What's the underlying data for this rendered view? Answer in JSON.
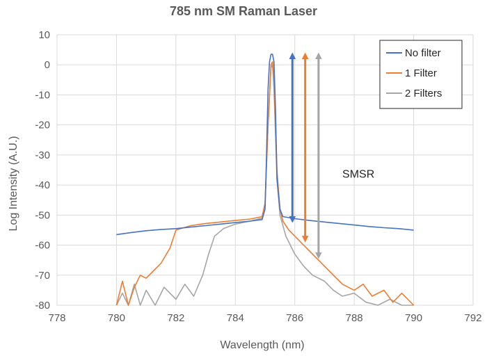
{
  "chart_data": {
    "type": "line",
    "title": "785 nm SM Raman Laser",
    "xlabel": "Wavelength (nm)",
    "ylabel": "Log Intensity (A.U.)",
    "xlim": [
      778,
      792
    ],
    "ylim": [
      -80,
      10
    ],
    "xticks": [
      778,
      780,
      782,
      784,
      786,
      788,
      790,
      792
    ],
    "yticks": [
      10,
      0,
      -10,
      -20,
      -30,
      -40,
      -50,
      -60,
      -70,
      -80
    ],
    "grid": true,
    "legend": "top-right",
    "series": [
      {
        "name": "No filter",
        "color": "#4472c4",
        "x": [
          780.0,
          780.5,
          781.0,
          781.5,
          782.0,
          782.5,
          783.0,
          783.5,
          784.0,
          784.5,
          784.9,
          785.0,
          785.05,
          785.1,
          785.15,
          785.2,
          785.25,
          785.3,
          785.35,
          785.4,
          785.5,
          785.6,
          786.0,
          786.5,
          787.0,
          787.5,
          788.0,
          788.5,
          789.0,
          789.5,
          790.0
        ],
        "y": [
          -56.5,
          -55.8,
          -55.2,
          -54.8,
          -54.5,
          -54.0,
          -53.5,
          -53.0,
          -52.5,
          -52.0,
          -51.5,
          -48,
          -30,
          -8,
          1,
          3.5,
          3.5,
          1,
          -15,
          -38,
          -48,
          -50.5,
          -51.2,
          -51.8,
          -52.3,
          -52.8,
          -53.3,
          -53.8,
          -54.2,
          -54.5,
          -55.0
        ]
      },
      {
        "name": "1 Filter",
        "color": "#ed7d31",
        "x": [
          780.0,
          780.2,
          780.4,
          780.6,
          780.8,
          781.0,
          781.2,
          781.5,
          781.8,
          782.0,
          782.5,
          783.0,
          783.5,
          784.0,
          784.5,
          784.9,
          785.0,
          785.1,
          785.2,
          785.25,
          785.3,
          785.4,
          785.5,
          785.6,
          785.8,
          786.0,
          786.3,
          786.6,
          787.0,
          787.3,
          787.6,
          788.0,
          788.3,
          788.6,
          789.0,
          789.3,
          789.6,
          790.0
        ],
        "y": [
          -80,
          -72,
          -80,
          -74,
          -70,
          -71,
          -69,
          -66,
          -61,
          -55,
          -53.5,
          -52.8,
          -52.3,
          -51.8,
          -51.3,
          -50.5,
          -46,
          -20,
          0,
          1,
          -5,
          -35,
          -48,
          -52,
          -55,
          -57,
          -60,
          -63,
          -67,
          -70,
          -73,
          -75,
          -73,
          -77,
          -75,
          -79,
          -76,
          -80
        ]
      },
      {
        "name": "2 Filters",
        "color": "#a5a5a5",
        "x": [
          780.0,
          780.2,
          780.4,
          780.6,
          780.8,
          781.0,
          781.3,
          781.6,
          782.0,
          782.3,
          782.6,
          782.9,
          783.1,
          783.3,
          783.6,
          784.0,
          784.5,
          784.9,
          785.0,
          785.1,
          785.2,
          785.25,
          785.3,
          785.4,
          785.5,
          785.7,
          786.0,
          786.3,
          786.6,
          787.0,
          787.3,
          787.6,
          788.0,
          788.4,
          788.8,
          789.2,
          789.6,
          790.0
        ],
        "y": [
          -80,
          -76,
          -80,
          -73,
          -80,
          -75,
          -80,
          -74,
          -78,
          -73,
          -77,
          -70,
          -63,
          -57,
          -54.5,
          -53,
          -52,
          -51,
          -46,
          -20,
          -1,
          0,
          -8,
          -38,
          -50,
          -57,
          -63,
          -67,
          -70,
          -72,
          -75,
          -77,
          -76,
          -79,
          -80,
          -78,
          -80,
          -80
        ]
      }
    ],
    "annotations": [
      {
        "text": "SMSR",
        "x": 787.6,
        "y": -37.5
      },
      {
        "type": "double-arrow",
        "x": 785.92,
        "y_top": 3,
        "y_bottom": -51.5,
        "color": "#4472c4"
      },
      {
        "type": "double-arrow",
        "x": 786.35,
        "y_top": 3,
        "y_bottom": -58,
        "color": "#ed7d31"
      },
      {
        "type": "double-arrow",
        "x": 786.8,
        "y_top": 3,
        "y_bottom": -63.5,
        "color": "#a5a5a5"
      }
    ]
  }
}
